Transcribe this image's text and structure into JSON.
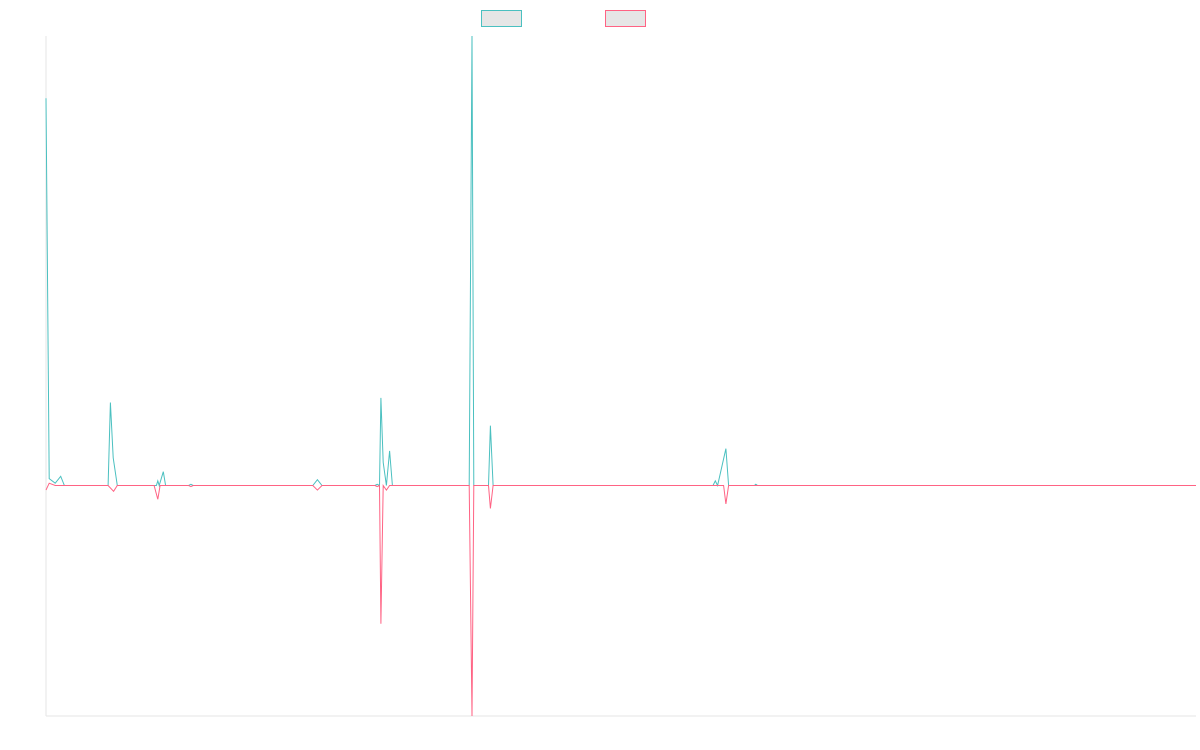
{
  "chart_data": {
    "type": "line",
    "x_range": [
      0,
      250
    ],
    "ylim": [
      -1.0,
      1.95
    ],
    "grid": false,
    "legend_position": "top-center",
    "series": [
      {
        "color": "#4bc0c0",
        "fill": "#e6e6e6",
        "points": [
          [
            0,
            1.68
          ],
          [
            0.7,
            0.03
          ],
          [
            2,
            0.01
          ],
          [
            3.2,
            0.04
          ],
          [
            4,
            0
          ],
          [
            13.5,
            0
          ],
          [
            14,
            0.36
          ],
          [
            14.6,
            0.12
          ],
          [
            15.5,
            0
          ],
          [
            24,
            0
          ],
          [
            24.3,
            0.02
          ],
          [
            24.6,
            0
          ],
          [
            25.5,
            0.06
          ],
          [
            26,
            0
          ],
          [
            31,
            0
          ],
          [
            31.5,
            0.005
          ],
          [
            32,
            0
          ],
          [
            58,
            0
          ],
          [
            59,
            0.025
          ],
          [
            60,
            0
          ],
          [
            71.5,
            0
          ],
          [
            72,
            0.005
          ],
          [
            72.5,
            0
          ],
          [
            72.8,
            0.38
          ],
          [
            73.3,
            0.1
          ],
          [
            74,
            0
          ],
          [
            74.7,
            0.15
          ],
          [
            75.3,
            0
          ],
          [
            92,
            0
          ],
          [
            92.6,
            1.95
          ],
          [
            93,
            0
          ],
          [
            96.2,
            0
          ],
          [
            96.6,
            0.26
          ],
          [
            97.2,
            0
          ],
          [
            145,
            0
          ],
          [
            145.5,
            0.02
          ],
          [
            146,
            0
          ],
          [
            147.8,
            0.16
          ],
          [
            148.4,
            0
          ],
          [
            154,
            0
          ],
          [
            154.3,
            0.005
          ],
          [
            154.7,
            0
          ],
          [
            250,
            0
          ]
        ]
      },
      {
        "color": "#ff6384",
        "fill": "#e6e6e6",
        "points": [
          [
            0,
            -0.02
          ],
          [
            0.7,
            0.01
          ],
          [
            2,
            0
          ],
          [
            13.5,
            0
          ],
          [
            14.7,
            -0.025
          ],
          [
            15.5,
            0
          ],
          [
            23.5,
            0
          ],
          [
            24.3,
            -0.06
          ],
          [
            24.8,
            0
          ],
          [
            26,
            0
          ],
          [
            31,
            0
          ],
          [
            31.5,
            -0.005
          ],
          [
            32,
            0
          ],
          [
            58,
            0
          ],
          [
            59,
            -0.02
          ],
          [
            60,
            0
          ],
          [
            71.5,
            0
          ],
          [
            72,
            -0.005
          ],
          [
            72.5,
            0
          ],
          [
            72.8,
            -0.6
          ],
          [
            73.3,
            0
          ],
          [
            74,
            -0.02
          ],
          [
            74.7,
            0
          ],
          [
            92,
            0
          ],
          [
            92.6,
            -1.0
          ],
          [
            93,
            0
          ],
          [
            96.2,
            0
          ],
          [
            96.6,
            -0.1
          ],
          [
            97.2,
            0
          ],
          [
            147.3,
            0
          ],
          [
            147.8,
            -0.08
          ],
          [
            148.4,
            0
          ],
          [
            250,
            0
          ]
        ]
      }
    ]
  }
}
